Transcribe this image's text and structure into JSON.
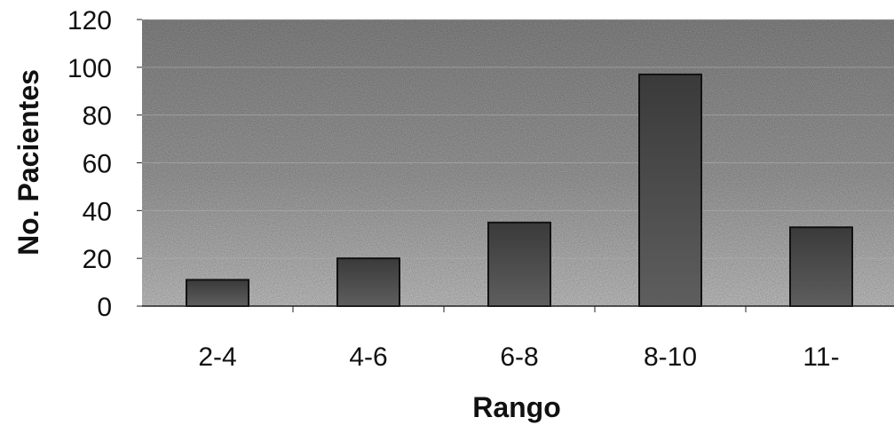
{
  "chart_data": {
    "type": "bar",
    "title": "",
    "xlabel": "Rango",
    "ylabel": "No. Pacientes",
    "categories": [
      "2-4",
      "4-6",
      "6-8",
      "8-10",
      "11-"
    ],
    "values": [
      11,
      20,
      35,
      97,
      33
    ],
    "ylim": [
      0,
      120
    ],
    "yticks": [
      0,
      20,
      40,
      60,
      80,
      100,
      120
    ],
    "grid": true,
    "legend": "none",
    "colors": {
      "bar_fill": "#4a4a4a",
      "bar_stroke": "#111111",
      "plot_background": "#9c9c9c",
      "grid": "#b0b0b0"
    }
  }
}
